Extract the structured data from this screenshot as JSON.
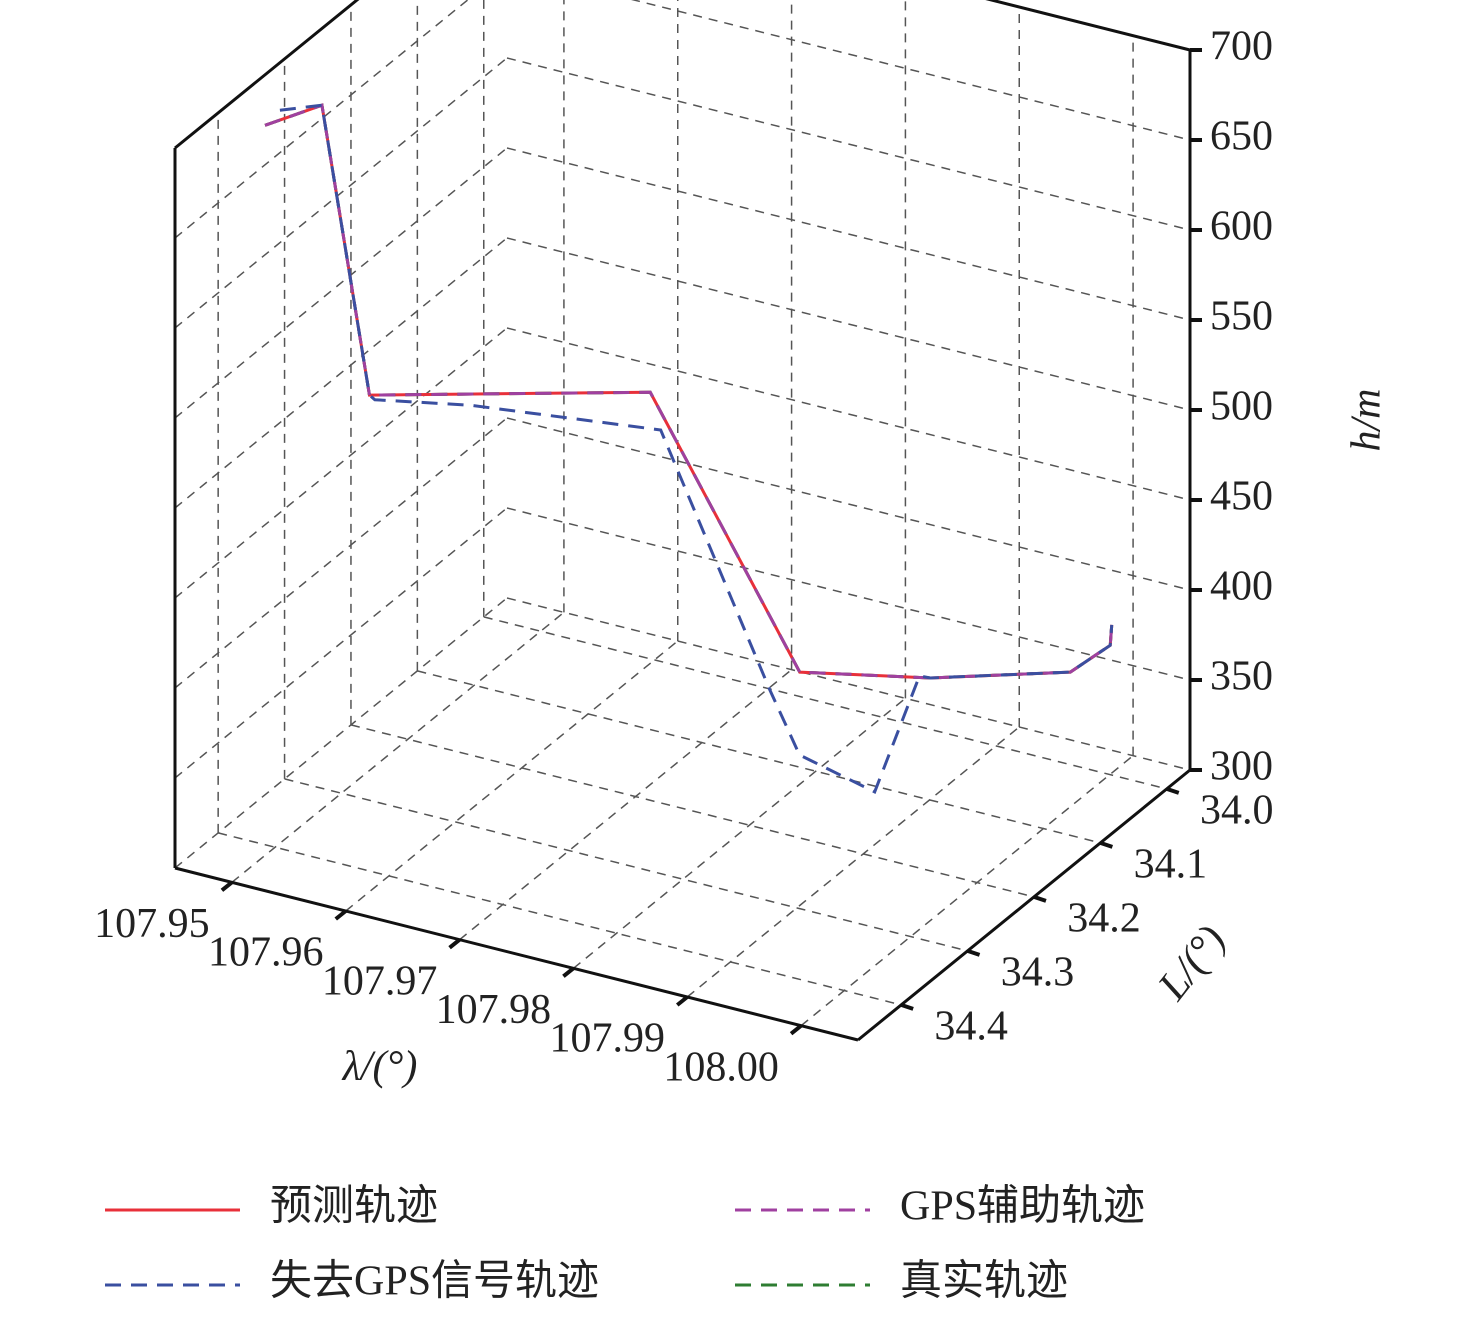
{
  "chart_data": {
    "type": "line3d",
    "xlabel": "λ/(°)",
    "ylabel": "L/(°)",
    "zlabel": "h/m",
    "xlim": [
      107.945,
      108.005
    ],
    "ylim": [
      33.965,
      34.465
    ],
    "zlim": [
      300,
      700
    ],
    "xticks": [
      107.95,
      107.96,
      107.97,
      107.98,
      107.99,
      {
        "value": 108,
        "label": "108.00"
      }
    ],
    "yticks": [
      {
        "value": 34,
        "label": "34.0"
      },
      34.1,
      34.2,
      34.3,
      34.4
    ],
    "zticks": [
      300,
      350,
      400,
      450,
      500,
      550,
      600,
      650,
      700
    ],
    "grid": true,
    "series": [
      {
        "name": "预测轨迹",
        "color": "#e8303a",
        "dash": false,
        "x": [
          107.9462,
          107.9491,
          107.9517,
          107.9703,
          107.9804,
          107.9889,
          107.9981,
          108.0005,
          108.0004
        ],
        "y": [
          34.35,
          34.314,
          34.287,
          34.183,
          34.131,
          34.08,
          34.027,
          34.008,
          34.004
        ],
        "z": [
          680,
          685,
          520,
          520,
          365,
          360,
          362,
          375,
          385
        ]
      },
      {
        "name": "真实轨迹",
        "color": "#2e7d32",
        "dash": true,
        "x": [
          107.9462,
          107.9491,
          107.9517,
          107.9703,
          107.9804,
          107.9889,
          107.9981,
          108.0005,
          108.0004
        ],
        "y": [
          34.35,
          34.314,
          34.287,
          34.183,
          34.131,
          34.08,
          34.027,
          34.008,
          34.004
        ],
        "z": [
          680,
          685,
          520,
          520,
          365,
          360,
          362,
          375,
          385
        ]
      },
      {
        "name": "GPS辅助轨迹",
        "color": "#a040a0",
        "dash": true,
        "x": [
          107.9462,
          107.9491,
          107.9517,
          107.9703,
          107.9804,
          107.9889,
          107.9981,
          108.0005,
          108.0004
        ],
        "y": [
          34.35,
          34.314,
          34.287,
          34.183,
          34.131,
          34.08,
          34.027,
          34.008,
          34.004
        ],
        "z": [
          680,
          685,
          520,
          520,
          365,
          360,
          362,
          375,
          385
        ]
      },
      {
        "name": "失去GPS信号轨迹",
        "color": "#3a4fa0",
        "dash": true,
        "x": [
          107.9464,
          107.9491,
          107.9517,
          107.952,
          107.9578,
          107.9704,
          107.9769,
          107.9798,
          107.9864,
          107.988,
          107.9889,
          107.9981,
          108.0005,
          108.0004
        ],
        "y": [
          34.331,
          34.314,
          34.287,
          34.284,
          34.24,
          34.169,
          34.116,
          34.121,
          34.121,
          34.081,
          34.08,
          34.027,
          34.008,
          34.004
        ],
        "z": [
          683,
          685,
          520,
          517,
          510,
          495,
          345,
          315,
          305,
          360,
          360,
          362,
          375,
          385
        ]
      }
    ]
  }
}
